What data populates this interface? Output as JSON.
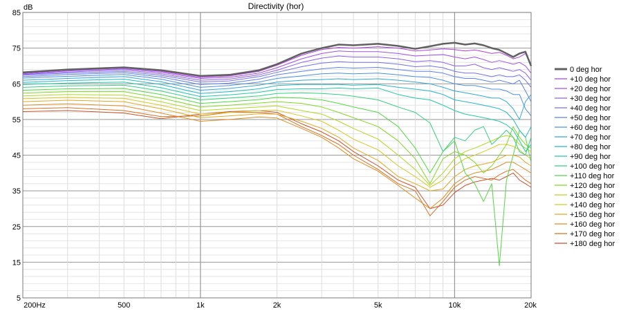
{
  "chart_data": {
    "type": "line",
    "title": "Directivity (hor)",
    "xlabel": "",
    "ylabel": "dB",
    "x_scale": "log",
    "xlim": [
      200,
      20000
    ],
    "ylim": [
      5,
      85
    ],
    "x_ticks": [
      {
        "value": 200,
        "label": "200Hz"
      },
      {
        "value": 500,
        "label": "500"
      },
      {
        "value": 1000,
        "label": "1k"
      },
      {
        "value": 2000,
        "label": "2k"
      },
      {
        "value": 5000,
        "label": "5k"
      },
      {
        "value": 10000,
        "label": "10k"
      },
      {
        "value": 20000,
        "label": "20k"
      }
    ],
    "y_ticks": [
      5,
      15,
      25,
      35,
      45,
      55,
      65,
      75,
      85
    ],
    "grid": true,
    "legend_position": "right",
    "x": [
      200,
      300,
      500,
      700,
      1000,
      1300,
      1700,
      2000,
      2500,
      3000,
      3500,
      4000,
      5000,
      6000,
      7000,
      8000,
      9000,
      10000,
      11000,
      12000,
      13000,
      14000,
      15000,
      16000,
      17000,
      18000,
      19000,
      20000
    ],
    "series": [
      {
        "name": "0 deg hor",
        "color": "#606060",
        "values": [
          68.2,
          69.0,
          69.6,
          68.8,
          67.2,
          67.5,
          68.8,
          70.5,
          73.5,
          75.0,
          76.0,
          75.8,
          76.2,
          75.6,
          74.8,
          75.5,
          76.2,
          76.5,
          76.0,
          76.3,
          75.8,
          75.0,
          74.5,
          73.5,
          72.5,
          73.5,
          74.0,
          70.0
        ]
      },
      {
        "name": "+10 deg hor",
        "color": "#b040e0",
        "values": [
          68.0,
          68.8,
          69.4,
          68.5,
          66.8,
          67.2,
          68.5,
          70.2,
          73.0,
          74.6,
          75.2,
          75.0,
          75.4,
          75.0,
          74.2,
          74.5,
          74.8,
          74.6,
          74.2,
          74.5,
          74.0,
          73.5,
          73.8,
          73.0,
          72.0,
          72.5,
          73.5,
          70.0
        ]
      },
      {
        "name": "+20 deg hor",
        "color": "#a050e8",
        "values": [
          67.8,
          68.6,
          69.2,
          68.2,
          66.5,
          66.8,
          68.0,
          69.5,
          72.0,
          73.5,
          74.2,
          74.0,
          74.0,
          73.5,
          72.8,
          73.0,
          73.2,
          72.5,
          72.0,
          72.5,
          71.8,
          71.0,
          71.5,
          71.0,
          70.5,
          71.0,
          70.0,
          68.0
        ]
      },
      {
        "name": "+30 deg hor",
        "color": "#8a60ea",
        "values": [
          67.6,
          68.3,
          68.9,
          67.8,
          66.0,
          66.3,
          67.5,
          68.8,
          71.0,
          72.2,
          72.8,
          72.5,
          72.5,
          72.0,
          71.2,
          71.5,
          71.0,
          70.0,
          70.0,
          70.5,
          69.5,
          69.0,
          69.5,
          69.0,
          68.5,
          69.0,
          68.0,
          66.0
        ]
      },
      {
        "name": "+40 deg hor",
        "color": "#7070ee",
        "values": [
          67.4,
          68.0,
          68.5,
          67.4,
          65.5,
          65.8,
          67.0,
          68.2,
          69.8,
          70.8,
          71.2,
          71.0,
          71.0,
          70.5,
          69.8,
          70.0,
          69.5,
          68.5,
          68.0,
          68.0,
          67.5,
          67.0,
          67.5,
          67.0,
          67.0,
          67.5,
          66.0,
          64.0
        ]
      },
      {
        "name": "+50 deg hor",
        "color": "#5a80ea",
        "values": [
          67.0,
          67.6,
          68.1,
          66.9,
          64.8,
          65.2,
          66.3,
          67.5,
          68.5,
          69.2,
          69.6,
          69.4,
          69.6,
          69.0,
          68.5,
          68.5,
          68.0,
          67.0,
          66.5,
          66.5,
          66.0,
          65.5,
          66.0,
          65.5,
          65.0,
          66.0,
          63.0,
          60.0
        ]
      },
      {
        "name": "+60 deg hor",
        "color": "#4a90e0",
        "values": [
          66.6,
          67.1,
          67.6,
          66.3,
          64.0,
          64.5,
          65.5,
          66.5,
          67.2,
          67.8,
          68.0,
          67.8,
          68.0,
          67.5,
          67.0,
          66.8,
          66.0,
          65.0,
          64.5,
          64.5,
          64.0,
          63.5,
          63.5,
          63.0,
          62.0,
          62.0,
          58.0,
          56.0
        ]
      },
      {
        "name": "+70 deg hor",
        "color": "#30a8d8",
        "values": [
          66.0,
          66.5,
          67.0,
          65.6,
          63.2,
          63.7,
          64.6,
          65.5,
          66.0,
          66.2,
          66.4,
          66.2,
          66.4,
          66.0,
          65.5,
          65.0,
          64.0,
          63.0,
          62.5,
          62.0,
          61.5,
          61.0,
          61.0,
          60.0,
          58.0,
          55.0,
          60.0,
          62.0
        ]
      },
      {
        "name": "+80 deg hor",
        "color": "#20b8c8",
        "values": [
          65.4,
          65.9,
          66.3,
          64.8,
          62.3,
          62.8,
          63.6,
          64.5,
          64.8,
          64.8,
          64.8,
          64.6,
          64.8,
          64.0,
          63.5,
          63.0,
          62.0,
          60.5,
          60.0,
          59.5,
          59.0,
          58.5,
          58.0,
          57.0,
          55.0,
          52.0,
          50.0,
          53.0
        ]
      },
      {
        "name": "+90 deg hor",
        "color": "#20c8a8",
        "values": [
          64.8,
          65.2,
          65.5,
          63.9,
          61.4,
          61.9,
          62.6,
          63.4,
          63.6,
          63.6,
          63.8,
          63.6,
          63.8,
          62.0,
          61.0,
          60.5,
          59.0,
          57.5,
          56.5,
          56.0,
          55.5,
          55.0,
          54.5,
          53.5,
          52.0,
          49.0,
          46.0,
          48.0
        ]
      },
      {
        "name": "+100 deg hor",
        "color": "#30d080",
        "values": [
          64.0,
          64.4,
          64.6,
          63.0,
          60.5,
          61.0,
          61.6,
          62.3,
          62.5,
          62.3,
          62.0,
          61.5,
          60.5,
          58.5,
          57.0,
          54.0,
          46.0,
          50.0,
          49.0,
          52.0,
          53.0,
          48.0,
          50.0,
          52.0,
          50.0,
          46.0,
          45.0,
          50.0
        ]
      },
      {
        "name": "+110 deg hor",
        "color": "#50d840",
        "values": [
          63.2,
          63.6,
          63.7,
          62.0,
          59.5,
          60.0,
          60.6,
          61.2,
          61.0,
          60.5,
          59.5,
          58.5,
          57.0,
          53.0,
          47.0,
          40.0,
          46.0,
          49.0,
          40.0,
          37.0,
          32.0,
          37.0,
          14.0,
          38.0,
          45.0,
          52.0,
          50.0,
          43.0
        ]
      },
      {
        "name": "+120 deg hor",
        "color": "#80d820",
        "values": [
          62.4,
          62.8,
          62.8,
          61.0,
          58.5,
          59.0,
          59.6,
          60.0,
          59.5,
          58.5,
          57.0,
          55.5,
          53.0,
          49.0,
          44.0,
          37.0,
          44.0,
          46.0,
          45.0,
          43.0,
          40.0,
          42.0,
          45.0,
          48.0,
          53.0,
          50.0,
          48.0,
          47.0
        ]
      },
      {
        "name": "+130 deg hor",
        "color": "#b0d820",
        "values": [
          61.6,
          62.0,
          61.8,
          60.0,
          57.5,
          58.0,
          58.5,
          58.8,
          57.5,
          56.5,
          54.5,
          52.5,
          49.5,
          45.0,
          41.0,
          36.5,
          40.0,
          44.0,
          46.0,
          47.0,
          48.0,
          49.0,
          50.0,
          50.5,
          50.0,
          48.0,
          47.0,
          46.0
        ]
      },
      {
        "name": "+140 deg hor",
        "color": "#d8c820",
        "values": [
          60.8,
          61.2,
          60.9,
          59.0,
          56.5,
          57.0,
          57.5,
          57.6,
          56.0,
          54.5,
          52.0,
          49.5,
          46.5,
          42.0,
          39.0,
          36.0,
          38.0,
          42.0,
          44.0,
          45.0,
          46.0,
          47.0,
          48.0,
          48.0,
          47.5,
          46.5,
          45.0,
          44.0
        ]
      },
      {
        "name": "+150 deg hor",
        "color": "#e0a820",
        "values": [
          60.0,
          60.4,
          60.0,
          58.0,
          55.5,
          56.0,
          56.6,
          56.5,
          54.5,
          52.5,
          50.0,
          47.0,
          43.5,
          39.0,
          37.0,
          35.0,
          35.5,
          39.0,
          41.0,
          42.0,
          42.5,
          43.0,
          44.0,
          45.0,
          45.0,
          44.5,
          43.0,
          42.0
        ]
      },
      {
        "name": "+160 deg hor",
        "color": "#e08a20",
        "values": [
          59.0,
          59.4,
          58.8,
          56.8,
          54.5,
          55.0,
          55.7,
          55.4,
          52.5,
          50.0,
          47.0,
          44.0,
          40.5,
          36.5,
          33.0,
          30.0,
          33.0,
          37.0,
          39.0,
          40.0,
          40.5,
          41.0,
          42.0,
          43.0,
          43.0,
          42.0,
          41.0,
          40.0
        ]
      },
      {
        "name": "+170 deg hor",
        "color": "#d87020",
        "values": [
          58.0,
          58.3,
          57.5,
          55.8,
          56.0,
          57.0,
          57.0,
          56.5,
          53.0,
          50.5,
          48.0,
          45.0,
          41.0,
          37.0,
          35.0,
          28.0,
          32.0,
          36.0,
          38.0,
          39.0,
          38.5,
          38.0,
          39.5,
          40.5,
          41.0,
          39.5,
          38.0,
          37.0
        ]
      },
      {
        "name": "+180 deg hor",
        "color": "#c85028",
        "values": [
          57.2,
          57.5,
          56.8,
          55.2,
          56.5,
          57.2,
          57.5,
          57.0,
          53.8,
          51.5,
          49.0,
          46.0,
          42.0,
          38.0,
          36.0,
          30.0,
          31.0,
          34.5,
          36.5,
          37.5,
          38.0,
          38.5,
          38.0,
          39.0,
          40.0,
          38.0,
          37.0,
          36.0
        ]
      }
    ]
  }
}
